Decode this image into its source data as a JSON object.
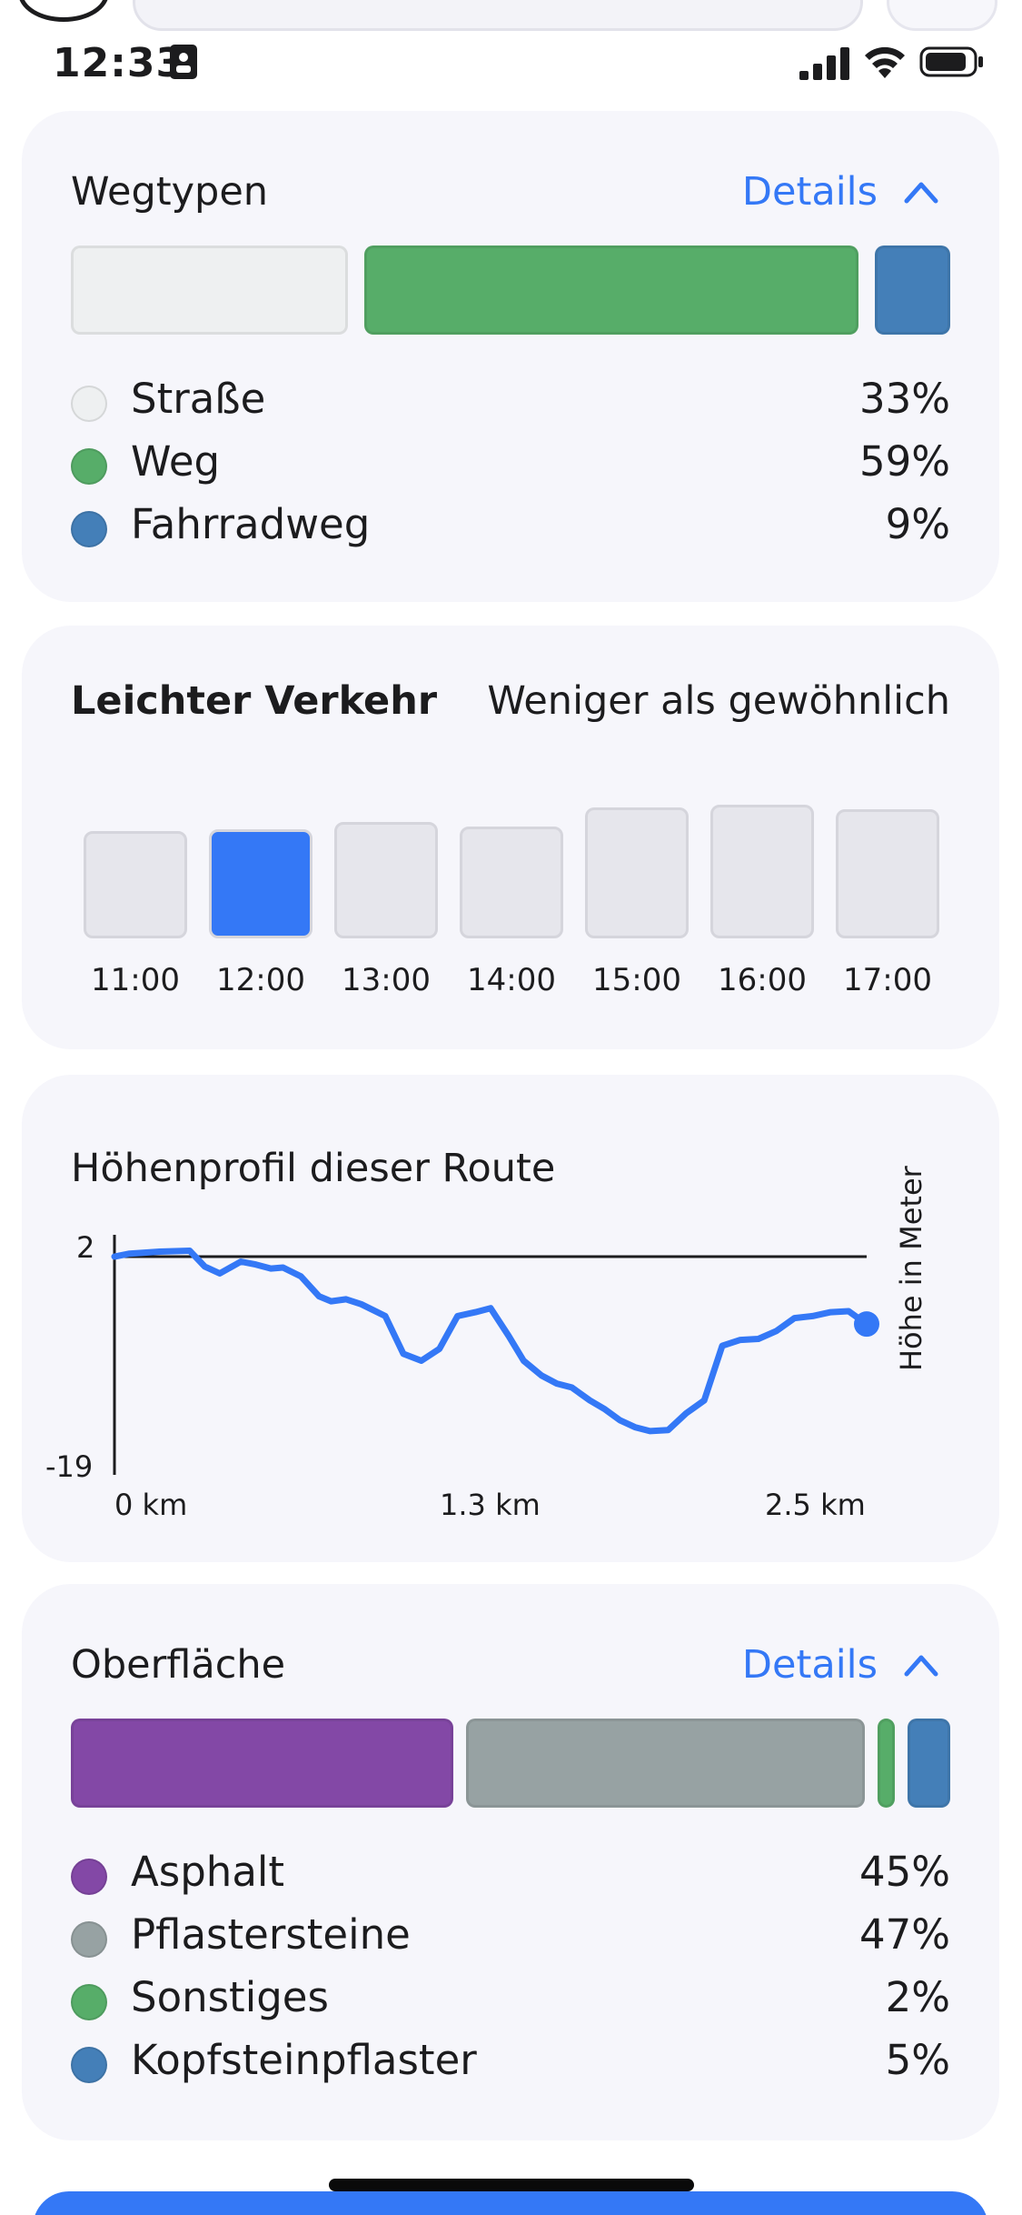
{
  "status_bar": {
    "time": "12:33",
    "icons": [
      "id-card-icon",
      "cellular-signal-icon",
      "wifi-icon",
      "battery-icon"
    ]
  },
  "colors": {
    "accent": "#3478f6",
    "card_bg": "#f6f6fb"
  },
  "wegtypen": {
    "title": "Wegtypen",
    "details_label": "Details",
    "items": [
      {
        "label": "Straße",
        "percent": "33%",
        "value": 33,
        "color": "#eef0f1"
      },
      {
        "label": "Weg",
        "percent": "59%",
        "value": 59,
        "color": "#57ad69"
      },
      {
        "label": "Fahrradweg",
        "percent": "9%",
        "value": 9,
        "color": "#447fb8"
      }
    ]
  },
  "traffic": {
    "title": "Leichter Verkehr",
    "subtitle": "Weniger als gewöhnlich",
    "bars": [
      {
        "time": "11:00",
        "level": 0.74,
        "active": false
      },
      {
        "time": "12:00",
        "level": 0.75,
        "active": true
      },
      {
        "time": "13:00",
        "level": 0.8,
        "active": false
      },
      {
        "time": "14:00",
        "level": 0.77,
        "active": false
      },
      {
        "time": "15:00",
        "level": 0.9,
        "active": false
      },
      {
        "time": "16:00",
        "level": 0.92,
        "active": false
      },
      {
        "time": "17:00",
        "level": 0.89,
        "active": false
      }
    ]
  },
  "elevation": {
    "title": "Höhenprofil dieser Route",
    "y_label": "Höhe in Meter",
    "y_ticks": [
      "2",
      "-19"
    ],
    "x_ticks": [
      "0 km",
      "1.3 km",
      "2.5 km"
    ],
    "chart_data": {
      "type": "line",
      "xlabel": "",
      "ylabel": "Höhe in Meter",
      "xlim": [
        0,
        2.5
      ],
      "ylim": [
        -19,
        2
      ],
      "series": [
        {
          "values_x": [
            0,
            0.05,
            0.15,
            0.25,
            0.3,
            0.35,
            0.42,
            0.47,
            0.52,
            0.56,
            0.62,
            0.68,
            0.72,
            0.77,
            0.82,
            0.9,
            0.96,
            1.02,
            1.08,
            1.14,
            1.2,
            1.25,
            1.31,
            1.36,
            1.42,
            1.47,
            1.52,
            1.58,
            1.63,
            1.68,
            1.73,
            1.78,
            1.84,
            1.9,
            1.96,
            2.02,
            2.08,
            2.14,
            2.2,
            2.26,
            2.32,
            2.38,
            2.44,
            2.5
          ],
          "values_y": [
            2.0,
            2.3,
            2.5,
            2.6,
            1.0,
            0.3,
            1.5,
            1.2,
            0.8,
            0.9,
            0.0,
            -2.0,
            -2.5,
            -2.3,
            -2.8,
            -4.0,
            -7.8,
            -8.5,
            -7.3,
            -4.0,
            -3.6,
            -3.2,
            -6.0,
            -8.5,
            -10.0,
            -10.8,
            -11.2,
            -12.5,
            -13.4,
            -14.5,
            -15.2,
            -15.6,
            -15.5,
            -13.8,
            -12.5,
            -7.0,
            -6.4,
            -6.3,
            -5.5,
            -4.2,
            -4.0,
            -3.6,
            -3.5,
            -4.8
          ]
        }
      ]
    }
  },
  "oberflaeche": {
    "title": "Oberfläche",
    "details_label": "Details",
    "items": [
      {
        "label": "Asphalt",
        "percent": "45%",
        "value": 45,
        "color": "#8348a6"
      },
      {
        "label": "Pflastersteine",
        "percent": "47%",
        "value": 47,
        "color": "#97a2a3"
      },
      {
        "label": "Sonstiges",
        "percent": "2%",
        "value": 2,
        "color": "#57ad69"
      },
      {
        "label": "Kopfsteinpflaster",
        "percent": "5%",
        "value": 5,
        "color": "#447fb8"
      }
    ]
  }
}
